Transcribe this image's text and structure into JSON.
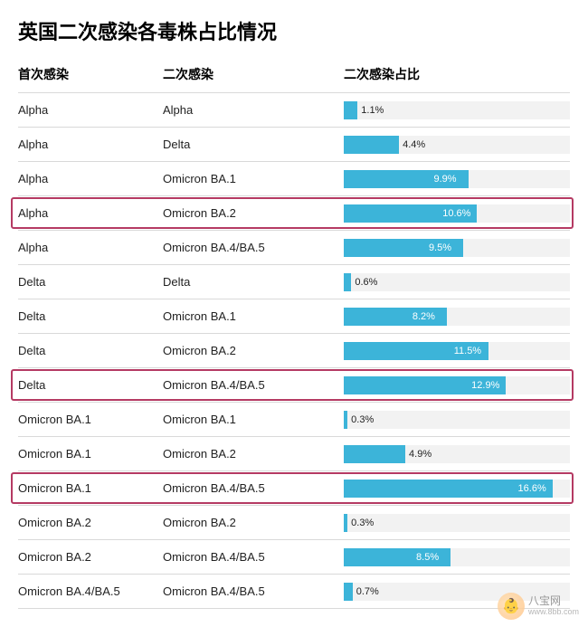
{
  "title": "英国二次感染各毒株占比情况",
  "columns": {
    "first": "首次感染",
    "second": "二次感染",
    "ratio": "二次感染占比"
  },
  "bar": {
    "color": "#3cb4d9",
    "track_color": "#f2f2f2",
    "max_value": 18,
    "label_inside_threshold": 7.0
  },
  "highlight": {
    "border_color": "#b53a63"
  },
  "rows": [
    {
      "first": "Alpha",
      "second": "Alpha",
      "value": 1.1,
      "label": "1.1%",
      "highlight": false
    },
    {
      "first": "Alpha",
      "second": "Delta",
      "value": 4.4,
      "label": "4.4%",
      "highlight": false
    },
    {
      "first": "Alpha",
      "second": "Omicron BA.1",
      "value": 9.9,
      "label": "9.9%",
      "highlight": false
    },
    {
      "first": "Alpha",
      "second": "Omicron BA.2",
      "value": 10.6,
      "label": "10.6%",
      "highlight": true
    },
    {
      "first": "Alpha",
      "second": "Omicron BA.4/BA.5",
      "value": 9.5,
      "label": "9.5%",
      "highlight": false
    },
    {
      "first": "Delta",
      "second": "Delta",
      "value": 0.6,
      "label": "0.6%",
      "highlight": false
    },
    {
      "first": "Delta",
      "second": "Omicron BA.1",
      "value": 8.2,
      "label": "8.2%",
      "highlight": false
    },
    {
      "first": "Delta",
      "second": "Omicron BA.2",
      "value": 11.5,
      "label": "11.5%",
      "highlight": false
    },
    {
      "first": "Delta",
      "second": "Omicron BA.4/BA.5",
      "value": 12.9,
      "label": "12.9%",
      "highlight": true
    },
    {
      "first": "Omicron BA.1",
      "second": "Omicron BA.1",
      "value": 0.3,
      "label": "0.3%",
      "highlight": false
    },
    {
      "first": "Omicron BA.1",
      "second": "Omicron BA.2",
      "value": 4.9,
      "label": "4.9%",
      "highlight": false
    },
    {
      "first": "Omicron BA.1",
      "second": "Omicron BA.4/BA.5",
      "value": 16.6,
      "label": "16.6%",
      "highlight": true
    },
    {
      "first": "Omicron BA.2",
      "second": "Omicron BA.2",
      "value": 0.3,
      "label": "0.3%",
      "highlight": false
    },
    {
      "first": "Omicron BA.2",
      "second": "Omicron BA.4/BA.5",
      "value": 8.5,
      "label": "8.5%",
      "highlight": false
    },
    {
      "first": "Omicron BA.4/BA.5",
      "second": "Omicron BA.4/BA.5",
      "value": 0.7,
      "label": "0.7%",
      "highlight": false
    }
  ],
  "watermark": {
    "name": "八宝网",
    "sub": "www.8bb.com",
    "emoji": "👶"
  }
}
